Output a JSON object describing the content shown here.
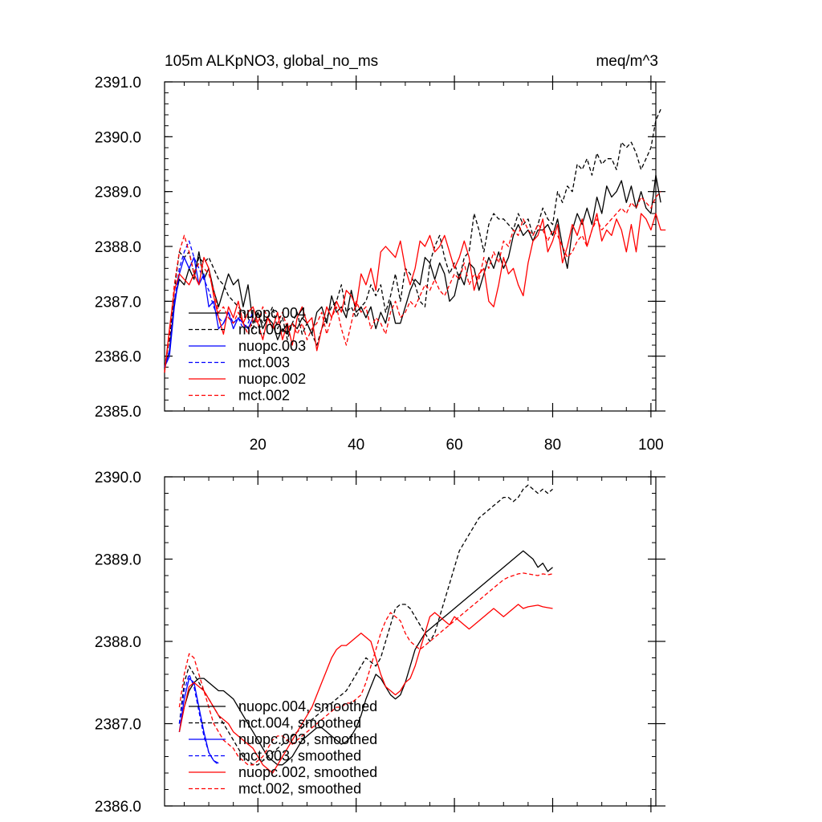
{
  "figure": {
    "title_left": "105m ALKpNO3, global_no_ms",
    "title_right": "meq/m^3"
  },
  "chart_data": [
    {
      "type": "line",
      "title": "105m ALKpNO3, global_no_ms",
      "units": "meq/m^3",
      "xlabel": "",
      "ylabel": "",
      "xlim": [
        1,
        101
      ],
      "ylim": [
        2385.0,
        2391.0
      ],
      "x_ticks": [
        20,
        40,
        60,
        80,
        100
      ],
      "x_tick_labels": [
        "20",
        "40",
        "60",
        "80",
        "100"
      ],
      "y_ticks": [
        2385.0,
        2386.0,
        2387.0,
        2388.0,
        2389.0,
        2390.0,
        2391.0
      ],
      "y_tick_labels": [
        "2385.0",
        "2386.0",
        "2387.0",
        "2388.0",
        "2389.0",
        "2390.0",
        "2391.0"
      ],
      "legend_position": "bottom-left",
      "series": [
        {
          "name": "nuopc.004",
          "color": "#000000",
          "dash": "solid",
          "x_start": 1,
          "values": [
            2385.8,
            2386.1,
            2387.0,
            2387.4,
            2387.3,
            2387.6,
            2387.4,
            2387.9,
            2387.4,
            2387.6,
            2387.2,
            2386.9,
            2387.2,
            2387.5,
            2387.3,
            2387.4,
            2386.9,
            2387.3,
            2386.6,
            2386.8,
            2386.5,
            2386.7,
            2386.6,
            2386.3,
            2386.5,
            2386.4,
            2386.6,
            2386.5,
            2386.7,
            2386.6,
            2386.4,
            2386.8,
            2386.9,
            2386.6,
            2387.1,
            2386.8,
            2386.9,
            2386.7,
            2387.2,
            2386.8,
            2386.9,
            2386.7,
            2386.9,
            2386.5,
            2386.8,
            2386.6,
            2387.0,
            2386.6,
            2386.6,
            2386.9,
            2387.2,
            2387.4,
            2387.3,
            2387.8,
            2387.7,
            2387.4,
            2387.7,
            2387.5,
            2387.0,
            2387.1,
            2387.5,
            2387.3,
            2387.7,
            2387.6,
            2387.2,
            2387.5,
            2387.8,
            2387.6,
            2387.9,
            2387.6,
            2387.8,
            2388.2,
            2388.4,
            2388.2,
            2388.3,
            2388.1,
            2388.3,
            2388.3,
            2388.4,
            2388.2,
            2388.5,
            2388.0,
            2387.6,
            2388.3,
            2388.6,
            2388.4,
            2388.7,
            2388.4,
            2388.9,
            2388.6,
            2389.1,
            2388.9,
            2389.0,
            2389.2,
            2388.8,
            2389.1,
            2388.7,
            2389.0,
            2388.7,
            2388.6,
            2389.3,
            2388.8
          ]
        },
        {
          "name": "mct.004",
          "color": "#000000",
          "dash": "dashed",
          "x_start": 1,
          "values": [
            2385.8,
            2386.3,
            2387.2,
            2387.9,
            2387.8,
            2387.9,
            2387.5,
            2387.8,
            2387.7,
            2387.8,
            2387.6,
            2387.4,
            2387.3,
            2387.1,
            2387.0,
            2386.9,
            2386.8,
            2386.7,
            2386.5,
            2386.8,
            2386.6,
            2386.7,
            2386.9,
            2386.5,
            2386.7,
            2386.3,
            2386.6,
            2386.8,
            2386.4,
            2386.6,
            2386.4,
            2386.2,
            2386.5,
            2386.7,
            2386.9,
            2387.0,
            2387.3,
            2386.8,
            2386.9,
            2386.7,
            2386.9,
            2387.0,
            2387.3,
            2387.1,
            2387.3,
            2386.8,
            2387.1,
            2387.5,
            2387.0,
            2387.6,
            2387.5,
            2387.3,
            2387.0,
            2386.9,
            2387.7,
            2388.0,
            2388.2,
            2387.8,
            2387.5,
            2387.7,
            2387.4,
            2387.8,
            2387.9,
            2388.6,
            2388.3,
            2387.9,
            2388.4,
            2388.6,
            2388.5,
            2388.5,
            2388.4,
            2388.3,
            2388.6,
            2388.4,
            2388.5,
            2388.2,
            2388.4,
            2388.7,
            2388.5,
            2388.4,
            2389.0,
            2388.8,
            2389.1,
            2389.0,
            2389.5,
            2389.4,
            2389.6,
            2389.3,
            2389.7,
            2389.5,
            2389.6,
            2389.6,
            2389.4,
            2389.9,
            2389.8,
            2389.9,
            2389.7,
            2389.4,
            2389.6,
            2389.8,
            2390.3,
            2390.5
          ]
        },
        {
          "name": "nuopc.003",
          "color": "#0000ff",
          "dash": "solid",
          "x_start": 1,
          "values": [
            2385.8,
            2386.0,
            2386.9,
            2387.5,
            2387.8,
            2387.6,
            2387.8,
            2387.3,
            2387.5,
            2386.9,
            2387.0,
            2386.5,
            2386.6,
            2386.8,
            2386.5,
            2386.7,
            2386.6,
            2386.5,
            2386.7
          ]
        },
        {
          "name": "mct.003",
          "color": "#0000ff",
          "dash": "dashed",
          "x_start": 1,
          "values": [
            2385.8,
            2386.1,
            2387.0,
            2387.6,
            2387.9,
            2388.1,
            2387.8,
            2387.6,
            2387.4,
            2387.2,
            2386.9,
            2386.7,
            2386.6,
            2386.8,
            2386.6,
            2386.7,
            2386.5,
            2386.6,
            2386.8
          ]
        },
        {
          "name": "nuopc.002",
          "color": "#ff0000",
          "dash": "solid",
          "x_start": 1,
          "values": [
            2385.7,
            2386.5,
            2387.2,
            2387.5,
            2387.4,
            2387.3,
            2387.5,
            2387.3,
            2387.8,
            2387.6,
            2387.1,
            2386.7,
            2386.4,
            2386.9,
            2386.7,
            2387.0,
            2386.6,
            2386.8,
            2386.9,
            2386.6,
            2386.3,
            2386.7,
            2386.5,
            2386.8,
            2386.3,
            2386.6,
            2386.2,
            2386.7,
            2386.9,
            2386.6,
            2386.7,
            2386.1,
            2386.5,
            2386.9,
            2386.7,
            2387.0,
            2386.8,
            2387.2,
            2387.1,
            2386.9,
            2387.5,
            2387.3,
            2387.6,
            2387.2,
            2387.9,
            2388.0,
            2387.9,
            2387.8,
            2388.1,
            2387.6,
            2387.3,
            2387.6,
            2388.1,
            2388.0,
            2388.2,
            2387.9,
            2388.0,
            2388.2,
            2387.9,
            2387.6,
            2387.8,
            2388.1,
            2387.8,
            2387.2,
            2387.5,
            2387.6,
            2387.0,
            2386.9,
            2387.3,
            2387.8,
            2387.5,
            2387.6,
            2387.3,
            2387.1,
            2387.7,
            2388.1,
            2388.2,
            2388.5,
            2387.9,
            2388.1,
            2388.4,
            2387.7,
            2388.0,
            2388.4,
            2388.2,
            2388.5,
            2388.0,
            2388.3,
            2388.6,
            2388.1,
            2388.3,
            2388.2,
            2388.5,
            2388.3,
            2387.9,
            2388.4,
            2387.9,
            2388.6,
            2388.5,
            2388.3,
            2388.6,
            2388.3,
            2388.3
          ]
        },
        {
          "name": "mct.002",
          "color": "#ff0000",
          "dash": "dashed",
          "x_start": 1,
          "values": [
            2385.7,
            2386.4,
            2387.3,
            2387.9,
            2388.2,
            2387.9,
            2387.5,
            2387.7,
            2387.6,
            2387.5,
            2387.2,
            2386.8,
            2386.9,
            2386.7,
            2386.6,
            2386.8,
            2386.6,
            2386.4,
            2386.7,
            2386.6,
            2386.9,
            2386.7,
            2386.5,
            2386.6,
            2386.8,
            2386.5,
            2386.6,
            2386.4,
            2386.6,
            2386.3,
            2386.5,
            2386.6,
            2386.8,
            2386.4,
            2386.7,
            2386.9,
            2386.5,
            2386.2,
            2386.6,
            2387.0,
            2386.8,
            2386.9,
            2386.5,
            2386.7,
            2386.6,
            2386.4,
            2386.8,
            2387.0,
            2386.7,
            2386.8,
            2387.0,
            2386.9,
            2387.1,
            2387.3,
            2387.2,
            2387.4,
            2387.2,
            2387.1,
            2387.3,
            2387.5,
            2387.4,
            2387.7,
            2387.3,
            2387.5,
            2387.4,
            2387.8,
            2387.6,
            2387.9,
            2387.7,
            2388.1,
            2388.0,
            2388.3,
            2388.2,
            2388.5,
            2388.3,
            2388.2,
            2388.4,
            2388.3,
            2388.1,
            2388.3,
            2388.2,
            2388.0,
            2387.8,
            2387.9,
            2388.1,
            2388.2,
            2388.0,
            2388.3,
            2388.5,
            2388.3,
            2388.4,
            2388.5,
            2388.6,
            2388.7,
            2388.6,
            2388.8,
            2388.7,
            2388.9,
            2388.8,
            2388.7,
            2388.9,
            2389.0
          ]
        }
      ]
    },
    {
      "type": "line",
      "title": "",
      "xlabel": "",
      "ylabel": "",
      "xlim": [
        1,
        101
      ],
      "ylim": [
        2386.0,
        2390.0
      ],
      "x_ticks": [
        20,
        40,
        60,
        80,
        100
      ],
      "x_tick_labels": [],
      "y_ticks": [
        2386.0,
        2387.0,
        2388.0,
        2389.0,
        2390.0
      ],
      "y_tick_labels": [
        "2386.0",
        "2387.0",
        "2388.0",
        "2389.0",
        "2390.0"
      ],
      "legend_position": "bottom-left",
      "series": [
        {
          "name": "nuopc.004, smoothed",
          "color": "#000000",
          "dash": "solid",
          "x_start": 4,
          "values": [
            2386.9,
            2387.2,
            2387.4,
            2387.5,
            2387.55,
            2387.55,
            2387.5,
            2387.45,
            2387.4,
            2387.4,
            2387.35,
            2387.3,
            2387.2,
            2387.1,
            2387.0,
            2386.9,
            2386.8,
            2386.7,
            2386.6,
            2386.55,
            2386.5,
            2386.5,
            2386.55,
            2386.6,
            2386.7,
            2386.8,
            2386.85,
            2386.9,
            2386.95,
            2386.95,
            2386.9,
            2386.85,
            2386.8,
            2386.75,
            2386.78,
            2386.85,
            2386.95,
            2387.1,
            2387.3,
            2387.45,
            2387.6,
            2387.55,
            2387.45,
            2387.35,
            2387.3,
            2387.35,
            2387.5,
            2387.7,
            2387.9,
            2388.0,
            2388.1,
            2388.15,
            2388.2,
            2388.25,
            2388.3,
            2388.35,
            2388.4,
            2388.45,
            2388.5,
            2388.55,
            2388.6,
            2388.65,
            2388.7,
            2388.75,
            2388.8,
            2388.85,
            2388.9,
            2388.95,
            2389.0,
            2389.05,
            2389.1,
            2389.05,
            2389.0,
            2388.9,
            2388.95,
            2388.85,
            2388.9
          ]
        },
        {
          "name": "mct.004, smoothed",
          "color": "#000000",
          "dash": "dashed",
          "x_start": 4,
          "values": [
            2387.0,
            2387.5,
            2387.7,
            2387.6,
            2387.5,
            2387.4,
            2387.3,
            2387.2,
            2387.1,
            2387.0,
            2386.9,
            2386.8,
            2386.7,
            2386.6,
            2386.55,
            2386.5,
            2386.5,
            2386.55,
            2386.6,
            2386.65,
            2386.7,
            2386.75,
            2386.8,
            2386.85,
            2386.9,
            2386.95,
            2387.0,
            2387.05,
            2387.1,
            2387.15,
            2387.2,
            2387.25,
            2387.3,
            2387.35,
            2387.4,
            2387.5,
            2387.6,
            2387.7,
            2387.8,
            2387.75,
            2387.7,
            2387.8,
            2388.0,
            2388.2,
            2388.4,
            2388.45,
            2388.45,
            2388.4,
            2388.3,
            2388.2,
            2388.1,
            2388.0,
            2388.1,
            2388.3,
            2388.5,
            2388.7,
            2388.9,
            2389.1,
            2389.2,
            2389.3,
            2389.4,
            2389.5,
            2389.55,
            2389.6,
            2389.65,
            2389.7,
            2389.75,
            2389.75,
            2389.7,
            2389.75,
            2389.85,
            2389.9,
            2389.85,
            2389.8,
            2389.85,
            2389.8,
            2389.85
          ]
        },
        {
          "name": "nuopc.003, smoothed",
          "color": "#0000ff",
          "dash": "solid",
          "x_start": 4,
          "values": [
            2386.9,
            2387.3,
            2387.55,
            2387.5,
            2387.2,
            2386.9,
            2386.65,
            2386.55,
            2386.52
          ]
        },
        {
          "name": "mct.003, smoothed",
          "color": "#0000ff",
          "dash": "dashed",
          "x_start": 4,
          "values": [
            2387.0,
            2387.4,
            2387.6,
            2387.45,
            2387.15,
            2386.85,
            2386.65,
            2386.55,
            2386.5
          ]
        },
        {
          "name": "nuopc.002, smoothed",
          "color": "#ff0000",
          "dash": "solid",
          "x_start": 4,
          "values": [
            2386.9,
            2387.2,
            2387.45,
            2387.5,
            2387.45,
            2387.4,
            2387.3,
            2387.2,
            2387.1,
            2387.05,
            2387.0,
            2386.9,
            2386.85,
            2386.8,
            2386.75,
            2386.7,
            2386.6,
            2386.5,
            2386.45,
            2386.4,
            2386.5,
            2386.6,
            2386.7,
            2386.8,
            2386.9,
            2387.0,
            2387.1,
            2387.2,
            2387.35,
            2387.5,
            2387.65,
            2387.8,
            2387.9,
            2387.95,
            2387.95,
            2388.0,
            2388.05,
            2388.1,
            2388.05,
            2388.0,
            2387.8,
            2387.6,
            2387.45,
            2387.4,
            2387.35,
            2387.4,
            2387.5,
            2387.55,
            2387.7,
            2387.9,
            2388.1,
            2388.3,
            2388.35,
            2388.3,
            2388.25,
            2388.2,
            2388.3,
            2388.25,
            2388.2,
            2388.15,
            2388.2,
            2388.25,
            2388.3,
            2388.35,
            2388.4,
            2388.35,
            2388.3,
            2388.35,
            2388.4,
            2388.45,
            2388.4,
            2388.42,
            2388.43,
            2388.44,
            2388.42,
            2388.41,
            2388.4
          ]
        },
        {
          "name": "mct.002, smoothed",
          "color": "#ff0000",
          "dash": "dashed",
          "x_start": 4,
          "values": [
            2387.2,
            2387.6,
            2387.85,
            2387.8,
            2387.6,
            2387.4,
            2387.2,
            2387.0,
            2386.9,
            2386.8,
            2386.75,
            2386.7,
            2386.6,
            2386.55,
            2386.5,
            2386.5,
            2386.55,
            2386.6,
            2386.7,
            2386.8,
            2386.85,
            2386.85,
            2386.8,
            2386.75,
            2386.8,
            2386.85,
            2386.9,
            2386.95,
            2387.0,
            2387.05,
            2387.1,
            2387.15,
            2387.2,
            2387.2,
            2387.25,
            2387.25,
            2387.3,
            2387.35,
            2387.5,
            2387.7,
            2387.9,
            2388.1,
            2388.25,
            2388.35,
            2388.3,
            2388.25,
            2388.1,
            2388.0,
            2387.95,
            2387.9,
            2387.95,
            2388.0,
            2388.05,
            2388.1,
            2388.15,
            2388.2,
            2388.25,
            2388.3,
            2388.35,
            2388.4,
            2388.45,
            2388.5,
            2388.55,
            2388.6,
            2388.65,
            2388.7,
            2388.75,
            2388.78,
            2388.8,
            2388.82,
            2388.83,
            2388.82,
            2388.81,
            2388.8,
            2388.82,
            2388.81,
            2388.82
          ]
        }
      ]
    }
  ]
}
